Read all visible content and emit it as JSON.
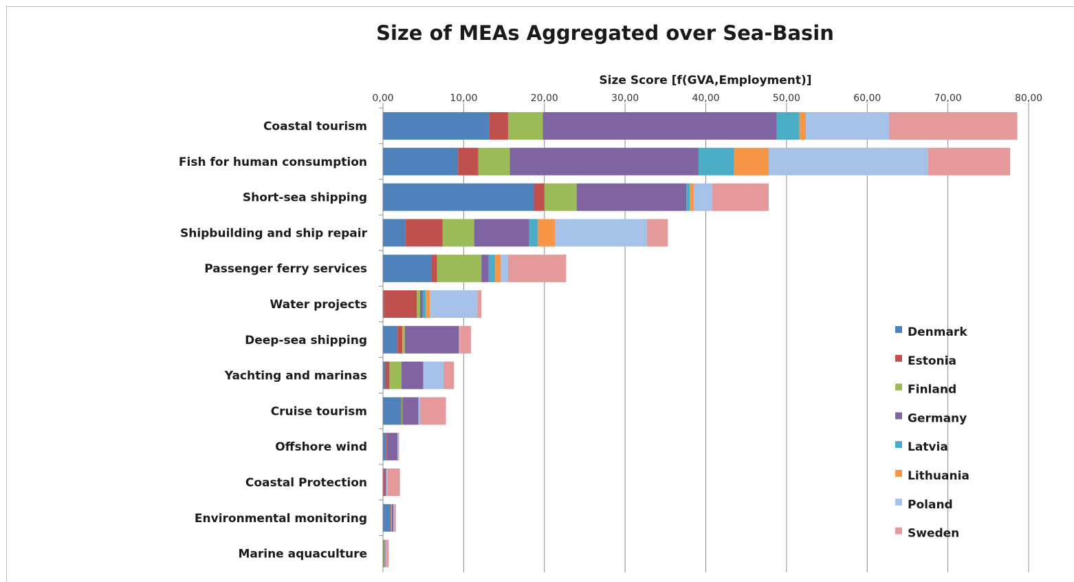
{
  "chart_data": {
    "type": "bar",
    "orientation": "horizontal",
    "stacked": true,
    "title": "Size of MEAs Aggregated over Sea-Basin",
    "xlabel": "Size Score [f(GVA,Employment)]",
    "ylabel": "",
    "xlim": [
      0,
      80
    ],
    "x_ticks": [
      "0,00",
      "10,00",
      "20,00",
      "30,00",
      "40,00",
      "50,00",
      "60,00",
      "70,00",
      "80,00"
    ],
    "grid": true,
    "legend_position": "right",
    "categories": [
      "Coastal tourism",
      "Fish for human consumption",
      "Short-sea shipping",
      "Shipbuilding and ship repair",
      "Passenger ferry services",
      "Water projects",
      "Deep-sea shipping",
      "Yachting and marinas",
      "Cruise tourism",
      "Offshore wind",
      "Coastal Protection",
      "Environmental monitoring",
      "Marine aquaculture"
    ],
    "series": [
      {
        "name": "Denmark",
        "color": "#4f81bd",
        "values": [
          13.2,
          9.3,
          18.7,
          2.8,
          6.0,
          0.1,
          1.8,
          0.3,
          2.2,
          0.4,
          0.1,
          0.9,
          0.1
        ]
      },
      {
        "name": "Estonia",
        "color": "#c0504d",
        "values": [
          2.3,
          2.5,
          1.3,
          4.6,
          0.7,
          4.1,
          0.6,
          0.5,
          0.1,
          0.1,
          0.2,
          0.1,
          0.0
        ]
      },
      {
        "name": "Finland",
        "color": "#9bbb59",
        "values": [
          4.3,
          3.9,
          4.0,
          3.9,
          5.5,
          0.4,
          0.3,
          1.5,
          0.1,
          0.0,
          0.0,
          0.1,
          0.1
        ]
      },
      {
        "name": "Germany",
        "color": "#8064a2",
        "values": [
          29.0,
          23.4,
          13.6,
          6.8,
          0.9,
          0.3,
          6.7,
          2.7,
          2.0,
          1.3,
          0.1,
          0.2,
          0.1
        ]
      },
      {
        "name": "Latvia",
        "color": "#4bacc6",
        "values": [
          2.8,
          4.4,
          0.4,
          1.1,
          0.8,
          0.4,
          0.0,
          0.0,
          0.0,
          0.0,
          0.0,
          0.0,
          0.0
        ]
      },
      {
        "name": "Lithuania",
        "color": "#f79646",
        "values": [
          0.8,
          4.3,
          0.5,
          2.1,
          0.7,
          0.5,
          0.1,
          0.0,
          0.0,
          0.0,
          0.0,
          0.0,
          0.0
        ]
      },
      {
        "name": "Poland",
        "color": "#a6c1e8",
        "values": [
          10.3,
          19.7,
          2.3,
          11.4,
          0.9,
          5.9,
          0.1,
          2.5,
          0.2,
          0.1,
          0.2,
          0.1,
          0.1
        ]
      },
      {
        "name": "Sweden",
        "color": "#e6999b",
        "values": [
          15.9,
          10.2,
          7.0,
          2.6,
          7.2,
          0.5,
          1.3,
          1.3,
          3.2,
          0.1,
          1.5,
          0.2,
          0.3
        ]
      }
    ]
  }
}
